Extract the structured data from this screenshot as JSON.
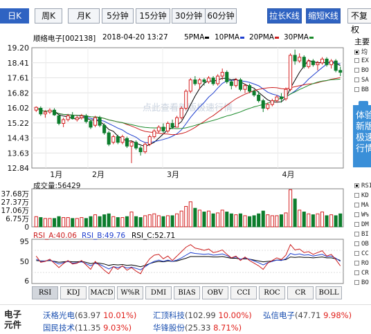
{
  "period_tabs": [
    {
      "label": "日K",
      "active": true
    },
    {
      "label": "周K",
      "active": false
    },
    {
      "label": "月K",
      "active": false
    },
    {
      "label": "5分钟",
      "active": false
    },
    {
      "label": "15分钟",
      "active": false
    },
    {
      "label": "30分钟",
      "active": false
    },
    {
      "label": "60分钟",
      "active": false
    }
  ],
  "actions": {
    "extend": "拉长K线",
    "shorten": "缩短K线",
    "no_adjust": "不复权"
  },
  "main_chart": {
    "stock": "顺络电子[002138]",
    "datetime": "2018-04-20 13:27",
    "ma_labels": [
      "5PMA",
      "10PMA",
      "20PMA",
      "30PMA"
    ],
    "ma_colors": [
      "#000000",
      "#1f3fcf",
      "#cc1d1d",
      "#1a8a2a"
    ],
    "y_ticks": [
      "19.20",
      "18.41",
      "17.61",
      "16.82",
      "16.02",
      "15.22",
      "14.43",
      "13.63",
      "12.84"
    ],
    "x_labels": [
      "1月",
      "2月",
      "3月",
      "4月"
    ],
    "watermark": "点此查看新版极速行情",
    "up_color": "#d42020",
    "down_color": "#0c7d2c"
  },
  "chart_data": {
    "type": "candlestick",
    "ylim": [
      12.84,
      19.2
    ],
    "candles": [
      [
        15.9,
        16.1,
        15.8,
        16.05
      ],
      [
        16.0,
        16.1,
        15.6,
        15.7
      ],
      [
        15.7,
        15.9,
        15.5,
        15.8
      ],
      [
        15.8,
        16.0,
        15.7,
        15.9
      ],
      [
        15.9,
        16.0,
        15.6,
        15.65
      ],
      [
        15.6,
        15.7,
        15.1,
        15.2
      ],
      [
        15.2,
        15.5,
        15.0,
        15.4
      ],
      [
        15.4,
        15.7,
        15.3,
        15.6
      ],
      [
        15.6,
        15.8,
        15.4,
        15.45
      ],
      [
        15.4,
        15.6,
        15.3,
        15.5
      ],
      [
        15.5,
        15.7,
        15.4,
        15.6
      ],
      [
        15.6,
        15.7,
        15.2,
        15.3
      ],
      [
        15.3,
        15.4,
        14.9,
        15.0
      ],
      [
        15.1,
        15.6,
        15.0,
        15.5
      ],
      [
        15.5,
        15.6,
        15.0,
        15.1
      ],
      [
        15.1,
        15.2,
        14.6,
        14.7
      ],
      [
        14.7,
        14.8,
        14.0,
        14.1
      ],
      [
        14.2,
        14.6,
        14.1,
        14.5
      ],
      [
        14.5,
        14.6,
        14.1,
        14.2
      ],
      [
        14.2,
        14.6,
        14.1,
        14.5
      ],
      [
        14.4,
        14.5,
        13.9,
        14.0
      ],
      [
        14.0,
        14.3,
        13.1,
        14.2
      ],
      [
        14.2,
        14.3,
        13.8,
        13.9
      ],
      [
        13.9,
        14.0,
        13.5,
        13.7
      ],
      [
        13.7,
        14.2,
        13.6,
        14.1
      ],
      [
        14.1,
        14.6,
        14.0,
        14.5
      ],
      [
        14.5,
        14.9,
        14.4,
        14.8
      ],
      [
        14.8,
        15.1,
        14.7,
        15.0
      ],
      [
        15.0,
        15.2,
        14.7,
        14.8
      ],
      [
        14.8,
        15.3,
        14.7,
        15.2
      ],
      [
        15.2,
        15.4,
        14.9,
        15.0
      ],
      [
        15.0,
        15.6,
        15.0,
        15.5
      ],
      [
        15.5,
        16.1,
        15.4,
        16.0
      ],
      [
        16.0,
        17.0,
        15.9,
        16.9
      ],
      [
        16.9,
        17.6,
        16.8,
        17.5
      ],
      [
        17.5,
        17.7,
        17.2,
        17.3
      ],
      [
        17.3,
        17.6,
        17.0,
        17.5
      ],
      [
        17.5,
        17.6,
        17.2,
        17.4
      ],
      [
        17.4,
        17.7,
        17.3,
        17.6
      ],
      [
        17.6,
        17.7,
        17.2,
        17.3
      ],
      [
        17.3,
        17.8,
        17.2,
        17.7
      ],
      [
        17.7,
        18.1,
        17.5,
        17.9
      ],
      [
        17.9,
        18.0,
        17.3,
        17.4
      ],
      [
        17.4,
        17.5,
        17.0,
        17.2
      ],
      [
        17.2,
        17.6,
        17.1,
        17.5
      ],
      [
        17.5,
        17.6,
        16.9,
        17.0
      ],
      [
        17.0,
        17.3,
        16.8,
        17.2
      ],
      [
        17.2,
        17.3,
        16.8,
        16.9
      ],
      [
        16.9,
        17.0,
        16.6,
        16.7
      ],
      [
        16.7,
        16.9,
        16.3,
        16.4
      ],
      [
        16.4,
        16.5,
        15.8,
        16.0
      ],
      [
        16.0,
        16.3,
        15.9,
        16.2
      ],
      [
        16.2,
        16.5,
        16.1,
        16.4
      ],
      [
        16.4,
        16.7,
        16.3,
        16.6
      ],
      [
        16.6,
        16.8,
        16.3,
        16.5
      ],
      [
        16.5,
        17.1,
        16.4,
        17.0
      ],
      [
        17.0,
        18.9,
        16.9,
        18.8
      ],
      [
        18.8,
        19.1,
        18.3,
        18.5
      ],
      [
        18.5,
        18.9,
        18.4,
        18.7
      ],
      [
        18.7,
        18.8,
        18.1,
        18.2
      ],
      [
        18.2,
        18.6,
        18.1,
        18.5
      ],
      [
        18.5,
        18.6,
        18.2,
        18.3
      ],
      [
        18.3,
        18.5,
        18.0,
        18.4
      ],
      [
        18.4,
        18.7,
        18.3,
        18.6
      ],
      [
        18.6,
        18.7,
        18.2,
        18.3
      ],
      [
        18.3,
        18.6,
        18.1,
        18.5
      ],
      [
        18.5,
        18.6,
        17.9,
        18.0
      ],
      [
        18.0,
        18.2,
        17.7,
        17.9
      ]
    ],
    "volume": {
      "ylabel": "成交量",
      "current": "56429",
      "y_ticks": [
        "37.68万",
        "27.37万",
        "17.06万",
        "6.75万",
        "0"
      ],
      "ylim": [
        0,
        41
      ],
      "values": [
        11,
        10,
        9,
        9,
        9,
        11,
        10,
        10,
        9,
        9,
        10,
        9,
        11,
        13,
        11,
        13,
        14,
        11,
        10,
        10,
        11,
        16,
        11,
        10,
        12,
        13,
        14,
        12,
        11,
        12,
        12,
        14,
        17,
        22,
        27,
        20,
        18,
        16,
        17,
        14,
        15,
        18,
        16,
        14,
        13,
        14,
        12,
        11,
        12,
        14,
        17,
        13,
        12,
        12,
        13,
        15,
        40,
        30,
        18,
        16,
        14,
        13,
        14,
        16,
        12,
        13,
        12,
        14
      ]
    },
    "rsi": {
      "labels": [
        "RSI_A:40.06",
        "RSI_B:49.76",
        "RSI_C:52.71"
      ],
      "colors": [
        "#cc1d1d",
        "#1f3fcf",
        "#000000"
      ],
      "y_ticks": [
        "95",
        "50",
        "6"
      ],
      "ylim": [
        0,
        100
      ],
      "rsi_a": [
        62,
        48,
        50,
        55,
        46,
        36,
        45,
        52,
        44,
        46,
        52,
        42,
        32,
        50,
        40,
        30,
        22,
        38,
        32,
        40,
        30,
        36,
        28,
        22,
        42,
        56,
        64,
        66,
        56,
        62,
        52,
        62,
        72,
        82,
        88,
        80,
        78,
        75,
        78,
        70,
        72,
        76,
        66,
        58,
        62,
        52,
        60,
        52,
        46,
        40,
        32,
        46,
        52,
        58,
        54,
        64,
        88,
        76,
        78,
        70,
        72,
        66,
        70,
        74,
        62,
        66,
        54,
        40
      ],
      "rsi_b": [
        55,
        50,
        51,
        53,
        49,
        44,
        47,
        50,
        46,
        47,
        49,
        45,
        40,
        46,
        43,
        38,
        33,
        38,
        36,
        39,
        35,
        37,
        34,
        31,
        38,
        45,
        50,
        53,
        50,
        53,
        50,
        53,
        58,
        64,
        70,
        68,
        67,
        66,
        67,
        64,
        65,
        67,
        63,
        58,
        60,
        55,
        58,
        55,
        51,
        47,
        42,
        47,
        50,
        53,
        52,
        56,
        68,
        65,
        67,
        64,
        65,
        62,
        64,
        66,
        61,
        62,
        57,
        50
      ],
      "rsi_c": [
        52,
        51,
        51,
        52,
        50,
        48,
        49,
        50,
        49,
        49,
        50,
        48,
        45,
        47,
        46,
        44,
        41,
        43,
        42,
        43,
        41,
        42,
        40,
        38,
        41,
        45,
        48,
        50,
        49,
        51,
        50,
        51,
        54,
        57,
        61,
        61,
        61,
        61,
        61,
        60,
        60,
        61,
        59,
        57,
        57,
        55,
        56,
        55,
        53,
        51,
        49,
        50,
        51,
        53,
        53,
        54,
        60,
        59,
        60,
        59,
        59,
        58,
        59,
        60,
        58,
        58,
        56,
        52
      ]
    }
  },
  "indicator_tabs": [
    {
      "label": "RSI",
      "active": true
    },
    {
      "label": "KDJ",
      "active": false
    },
    {
      "label": "MACD",
      "active": false
    },
    {
      "label": "W%R",
      "active": false
    },
    {
      "label": "DMI",
      "active": false
    },
    {
      "label": "BIAS",
      "active": false
    },
    {
      "label": "OBV",
      "active": false
    },
    {
      "label": "CCI",
      "active": false
    },
    {
      "label": "ROC",
      "active": false
    },
    {
      "label": "CR",
      "active": false
    },
    {
      "label": "BOLL",
      "active": false
    }
  ],
  "right_panel": {
    "title": "主要",
    "items_main": [
      "均",
      "EX",
      "BO",
      "SA",
      "BB"
    ],
    "promo": [
      "体验",
      "新版",
      "极速",
      "行情"
    ],
    "items_indicator": [
      "RSI",
      "KD",
      "MA",
      "W%",
      "DM",
      "BI",
      "OB",
      "CC",
      "RO",
      "CR",
      "BO"
    ]
  },
  "footer": {
    "sector": "电子元件",
    "stocks": [
      {
        "name": "沃格光电",
        "price": "(63.97",
        "pct": "10.01%)"
      },
      {
        "name": "汇顶科技",
        "price": "(102.99",
        "pct": "10.00%)"
      },
      {
        "name": "弘信电子",
        "price": "(47.71",
        "pct": "9.98%)"
      },
      {
        "name": "国民技术",
        "price": "(11.35",
        "pct": "9.03%)"
      },
      {
        "name": "华锋股份",
        "price": "(25.33",
        "pct": "8.71%)"
      }
    ]
  }
}
